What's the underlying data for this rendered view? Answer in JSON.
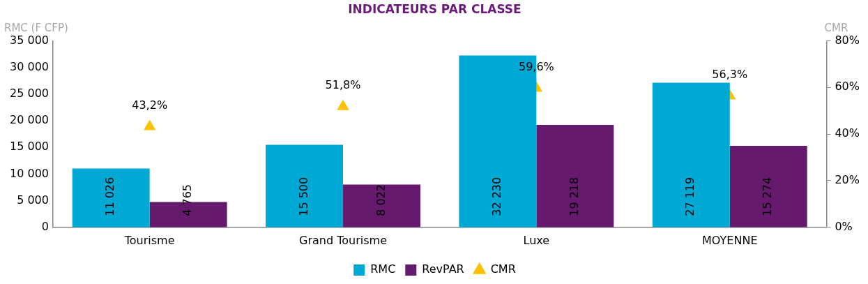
{
  "chart_data": {
    "type": "bar",
    "title": "INDICATEURS PAR CLASSE",
    "ylabel": "RMC (F CFP)",
    "y2label": "CMR",
    "categories": [
      "Tourisme",
      "Grand Tourisme",
      "Luxe",
      "MOYENNE"
    ],
    "series": [
      {
        "name": "RMC",
        "color": "#00a8d4",
        "values": [
          11026,
          15500,
          32230,
          27119
        ],
        "value_labels": [
          "11 026",
          "15 500",
          "32 230",
          "27 119"
        ]
      },
      {
        "name": "RevPAR",
        "color": "#661a6e",
        "values": [
          4765,
          8022,
          19218,
          15274
        ],
        "value_labels": [
          "4 765",
          "8 022",
          "19 218",
          "15 274"
        ]
      },
      {
        "name": "CMR",
        "type": "scatter",
        "axis": "y2",
        "marker": "triangle",
        "color": "#ffc000",
        "values": [
          43.2,
          51.8,
          59.6,
          56.3
        ],
        "value_labels": [
          "43,2%",
          "51,8%",
          "59,6%",
          "56,3%"
        ]
      }
    ],
    "ylim": [
      0,
      35000
    ],
    "yticks": [
      0,
      {
        "value": 5000,
        "label": "5 000"
      },
      {
        "value": 10000,
        "label": "10 000"
      },
      {
        "value": 15000,
        "label": "15 000"
      },
      {
        "value": 20000,
        "label": "20 000"
      },
      {
        "value": 25000,
        "label": "25 000"
      },
      {
        "value": 30000,
        "label": "30 000"
      },
      {
        "value": 35000,
        "label": "35 000"
      }
    ],
    "y2lim": [
      0,
      80
    ],
    "y2ticks": [
      {
        "value": 0,
        "label": "0%"
      },
      {
        "value": 20,
        "label": "20%"
      },
      {
        "value": 40,
        "label": "40%"
      },
      {
        "value": 60,
        "label": "60%"
      },
      {
        "value": 80,
        "label": "80%"
      }
    ],
    "grid": false,
    "legend": "bottom"
  }
}
